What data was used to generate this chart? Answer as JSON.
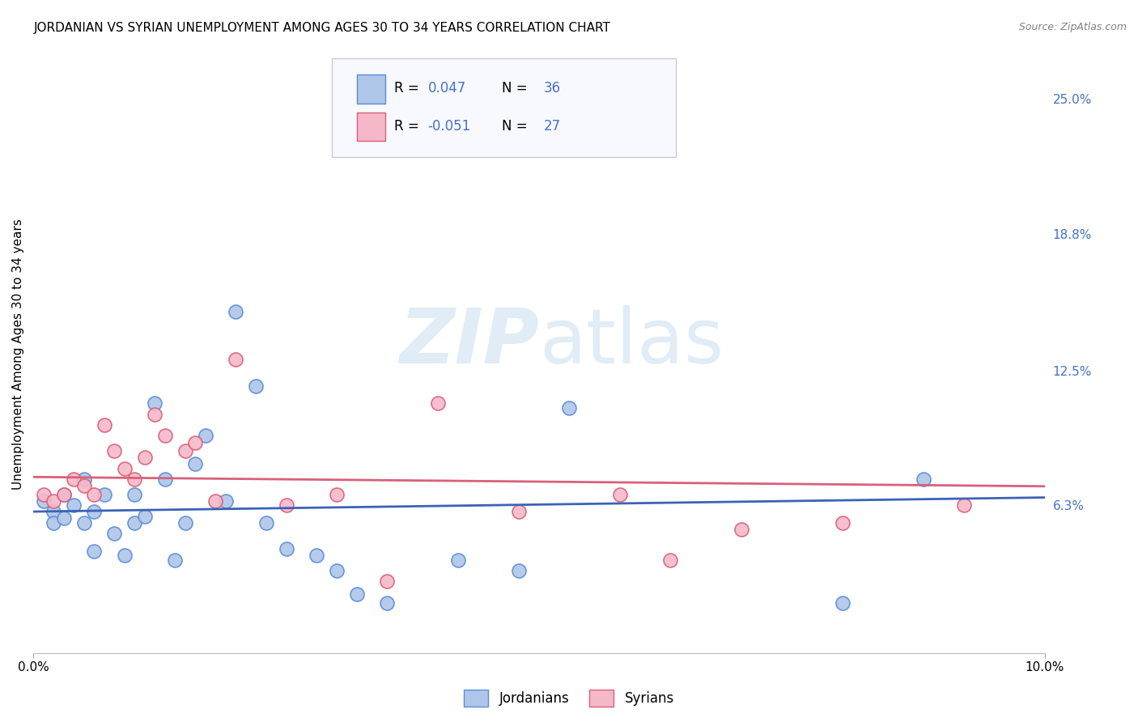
{
  "title": "JORDANIAN VS SYRIAN UNEMPLOYMENT AMONG AGES 30 TO 34 YEARS CORRELATION CHART",
  "source": "Source: ZipAtlas.com",
  "ylabel": "Unemployment Among Ages 30 to 34 years",
  "xlim": [
    0.0,
    0.1
  ],
  "ylim": [
    -0.005,
    0.27
  ],
  "jordanian_r": 0.047,
  "jordanian_n": 36,
  "syrian_r": -0.051,
  "syrian_n": 27,
  "jordanian_color": "#aec6e8",
  "jordanian_edge": "#5b8dd9",
  "syrian_color": "#f5b8c8",
  "syrian_edge": "#d9607a",
  "jordanian_line_color": "#3a63b8",
  "syrian_line_color": "#d9607a",
  "right_axis_color": "#4472c4",
  "background_color": "#ffffff",
  "grid_color": "#cccccc",
  "watermark_color": "#c8ddf0",
  "legend_text_color": "#4472c4",
  "jx": [
    0.001,
    0.002,
    0.002,
    0.003,
    0.003,
    0.004,
    0.005,
    0.005,
    0.006,
    0.006,
    0.007,
    0.008,
    0.009,
    0.01,
    0.01,
    0.011,
    0.012,
    0.013,
    0.014,
    0.015,
    0.016,
    0.017,
    0.019,
    0.02,
    0.022,
    0.023,
    0.025,
    0.028,
    0.03,
    0.032,
    0.035,
    0.042,
    0.048,
    0.053,
    0.08,
    0.088
  ],
  "jy": [
    0.065,
    0.06,
    0.055,
    0.068,
    0.057,
    0.063,
    0.075,
    0.055,
    0.06,
    0.042,
    0.068,
    0.05,
    0.04,
    0.055,
    0.068,
    0.058,
    0.11,
    0.075,
    0.038,
    0.055,
    0.082,
    0.095,
    0.065,
    0.152,
    0.118,
    0.055,
    0.043,
    0.04,
    0.033,
    0.022,
    0.018,
    0.038,
    0.033,
    0.108,
    0.018,
    0.075
  ],
  "sx": [
    0.001,
    0.002,
    0.003,
    0.004,
    0.005,
    0.006,
    0.007,
    0.008,
    0.009,
    0.01,
    0.011,
    0.012,
    0.013,
    0.015,
    0.016,
    0.018,
    0.02,
    0.025,
    0.03,
    0.035,
    0.04,
    0.048,
    0.058,
    0.063,
    0.07,
    0.08,
    0.092
  ],
  "sy": [
    0.068,
    0.065,
    0.068,
    0.075,
    0.072,
    0.068,
    0.1,
    0.088,
    0.08,
    0.075,
    0.085,
    0.105,
    0.095,
    0.088,
    0.092,
    0.065,
    0.13,
    0.063,
    0.068,
    0.028,
    0.11,
    0.06,
    0.068,
    0.038,
    0.052,
    0.055,
    0.063
  ],
  "ytick_vals": [
    0.0,
    0.063,
    0.125,
    0.188,
    0.25
  ],
  "ytick_labels": [
    "",
    "6.3%",
    "12.5%",
    "18.8%",
    "25.0%"
  ]
}
